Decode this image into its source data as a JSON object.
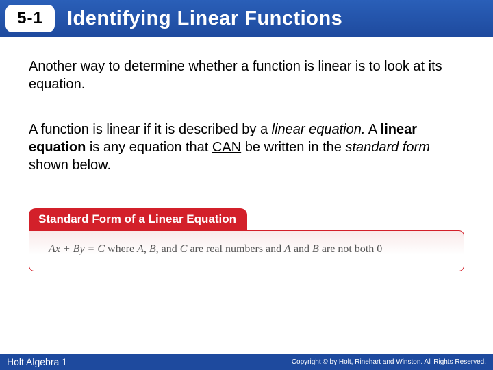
{
  "header": {
    "section": "5-1",
    "title": "Identifying Linear Functions",
    "bg_gradient_top": "#2a5fb8",
    "bg_gradient_bottom": "#1e4a9e",
    "title_color": "#ffffff",
    "badge_bg": "#ffffff"
  },
  "body": {
    "para1": "Another way to determine whether a function is linear is to look at its equation.",
    "para2_run1": "A function is linear if it is described by a ",
    "para2_italic1": "linear equation.",
    "para2_run2": " A ",
    "para2_bold": "linear equation",
    "para2_run3": " is any equation that ",
    "para2_underline": "CAN",
    "para2_run4": " be written in the ",
    "para2_italic2": "standard form",
    "para2_run5": " shown below."
  },
  "formula": {
    "tab_label": "Standard Form of a Linear Equation",
    "tab_bg": "#d3202a",
    "tab_color": "#ffffff",
    "equation_prefix": "Ax + By = C",
    "equation_mid": " where ",
    "equation_vars": "A, B,",
    "equation_and1": " and ",
    "equation_c": "C",
    "equation_mid2": " are real numbers and ",
    "equation_a": "A",
    "equation_and2": " and ",
    "equation_b": "B",
    "equation_tail": " are not both 0",
    "border_color": "#d3202a",
    "body_bg_top": "#f9eaea",
    "body_bg_bottom": "#ffffff"
  },
  "footer": {
    "left": "Holt Algebra 1",
    "right": "Copyright © by Holt, Rinehart and Winston. All Rights Reserved.",
    "bg": "#1e4a9e",
    "color": "#ffffff"
  }
}
